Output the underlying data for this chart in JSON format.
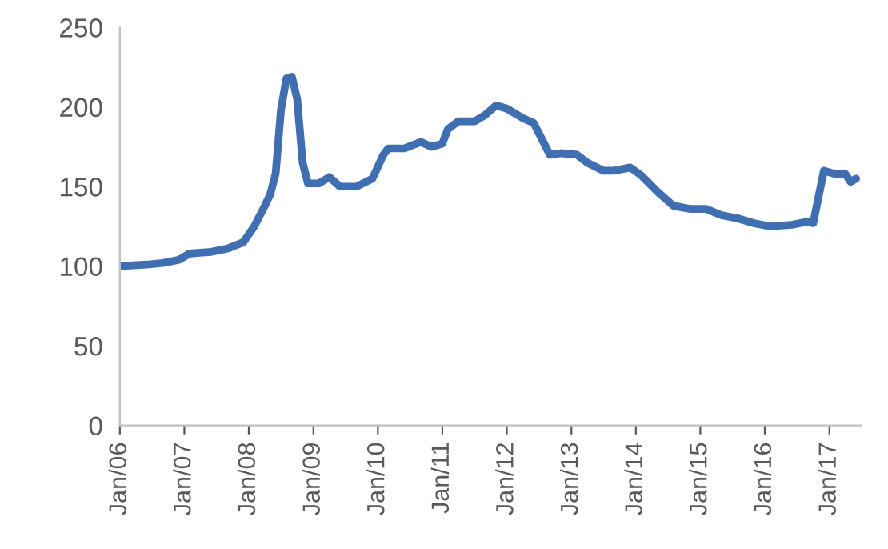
{
  "chart_data": {
    "type": "line",
    "x": [
      "2006-01",
      "2006-06",
      "2006-09",
      "2006-12",
      "2007-02",
      "2007-06",
      "2007-09",
      "2007-12",
      "2008-02",
      "2008-04",
      "2008-05",
      "2008-06",
      "2008-07",
      "2008-08",
      "2008-09",
      "2008-10",
      "2008-11",
      "2008-12",
      "2009-02",
      "2009-04",
      "2009-06",
      "2009-09",
      "2009-12",
      "2010-02",
      "2010-03",
      "2010-06",
      "2010-09",
      "2010-11",
      "2011-01",
      "2011-02",
      "2011-04",
      "2011-07",
      "2011-09",
      "2011-11",
      "2012-01",
      "2012-04",
      "2012-06",
      "2012-09",
      "2012-11",
      "2013-02",
      "2013-04",
      "2013-07",
      "2013-09",
      "2013-12",
      "2014-02",
      "2014-05",
      "2014-08",
      "2014-11",
      "2015-02",
      "2015-05",
      "2015-08",
      "2015-11",
      "2016-02",
      "2016-06",
      "2016-09",
      "2016-10",
      "2016-12",
      "2017-02",
      "2017-04",
      "2017-05",
      "2017-06"
    ],
    "series": [
      {
        "color": "#3f6fb0",
        "values": [
          100,
          101,
          102,
          104,
          108,
          109,
          111,
          115,
          125,
          138,
          145,
          158,
          198,
          218,
          219,
          205,
          165,
          152,
          152,
          156,
          150,
          150,
          155,
          170,
          174,
          174,
          178,
          175,
          177,
          186,
          191,
          191,
          195,
          201,
          199,
          193,
          190,
          170,
          171,
          170,
          165,
          160,
          160,
          162,
          157,
          147,
          138,
          136,
          136,
          132,
          130,
          127,
          125,
          126,
          128,
          127,
          160,
          158,
          158,
          153,
          155
        ]
      }
    ],
    "xlim": [
      "2006-01",
      "2017-07"
    ],
    "xticks": [
      {
        "value": "2006-01",
        "label": "Jan/06"
      },
      {
        "value": "2007-01",
        "label": "Jan/07"
      },
      {
        "value": "2008-01",
        "label": "Jan/08"
      },
      {
        "value": "2009-01",
        "label": "Jan/09"
      },
      {
        "value": "2010-01",
        "label": "Jan/10"
      },
      {
        "value": "2011-01",
        "label": "Jan/11"
      },
      {
        "value": "2012-01",
        "label": "Jan/12"
      },
      {
        "value": "2013-01",
        "label": "Jan/13"
      },
      {
        "value": "2014-01",
        "label": "Jan/14"
      },
      {
        "value": "2015-01",
        "label": "Jan/15"
      },
      {
        "value": "2016-01",
        "label": "Jan/16"
      },
      {
        "value": "2017-01",
        "label": "Jan/17"
      }
    ],
    "ylim": [
      0,
      250
    ],
    "yticks": [
      0,
      50,
      100,
      150,
      200,
      250
    ],
    "grid": false,
    "legend": false,
    "marker": "none",
    "line_style": "solid"
  }
}
